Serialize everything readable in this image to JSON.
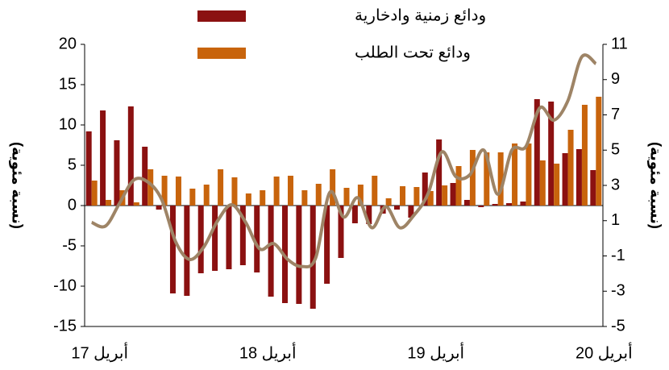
{
  "chart_data": {
    "type": "bar",
    "categories": [
      "أبريل 17",
      null,
      null,
      null,
      null,
      null,
      null,
      null,
      null,
      null,
      null,
      null,
      "أبريل 18",
      null,
      null,
      null,
      null,
      null,
      null,
      null,
      null,
      null,
      null,
      null,
      "أبريل 19",
      null,
      null,
      null,
      null,
      null,
      null,
      null,
      null,
      null,
      null,
      null,
      "أبريل 20"
    ],
    "series": [
      {
        "name": "ودائع زمنية وادخارية",
        "color": "#8b1111",
        "values": [
          9.2,
          11.8,
          8.1,
          12.3,
          7.3,
          -0.5,
          -10.9,
          -11.2,
          -8.4,
          -8.1,
          -7.9,
          -7.4,
          -8.3,
          -11.3,
          -12.1,
          -12.2,
          -12.8,
          -9.7,
          -6.5,
          -2.2,
          -2.3,
          -1.0,
          -0.5,
          -1.5,
          4.1,
          8.2,
          2.8,
          0.7,
          -0.2,
          0.2,
          0.3,
          0.5,
          13.2,
          12.9,
          6.5,
          7.0,
          4.4
        ]
      },
      {
        "name": "ودائع تحت الطلب",
        "color": "#c8640c",
        "values": [
          3.1,
          0.7,
          1.9,
          0.4,
          4.5,
          3.7,
          3.6,
          2.1,
          2.6,
          4.5,
          3.5,
          1.5,
          1.9,
          3.6,
          3.7,
          1.9,
          2.7,
          4.5,
          2.2,
          2.6,
          3.7,
          0.9,
          2.4,
          2.3,
          1.8,
          2.5,
          4.9,
          6.9,
          6.6,
          6.6,
          7.7,
          7.7,
          5.6,
          5.2,
          9.4,
          12.5,
          13.5
        ]
      },
      {
        "type": "line",
        "axis": "y2",
        "color": "#9e8466",
        "values": [
          0.9,
          0.7,
          2.0,
          3.3,
          3.2,
          2.2,
          -0.2,
          -1.2,
          -0.5,
          1.0,
          1.9,
          0.9,
          -0.6,
          -0.3,
          -1.2,
          -1.6,
          -1.1,
          2.6,
          1.2,
          2.3,
          0.6,
          1.8,
          0.6,
          1.3,
          2.5,
          4.9,
          3.5,
          3.6,
          5.0,
          2.5,
          5.0,
          5.2,
          7.4,
          6.7,
          7.8,
          10.3,
          9.9
        ]
      }
    ],
    "ylabel": "(نسبة مئوية)",
    "y2label": "(نسبة مئوية)",
    "ylim": [
      -15,
      20
    ],
    "yticks": [
      -15,
      -10,
      -5,
      0,
      5,
      10,
      15,
      20
    ],
    "y2lim": [
      -5,
      11
    ],
    "y2ticks": [
      -5,
      -3,
      -1,
      1,
      3,
      5,
      7,
      9,
      11
    ],
    "legend": "top"
  }
}
